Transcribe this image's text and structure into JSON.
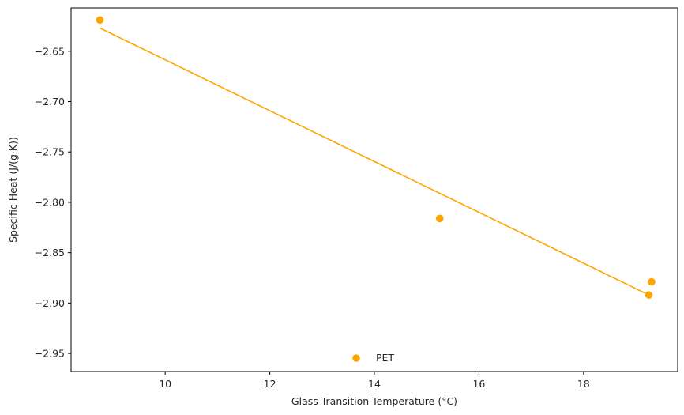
{
  "chart_data": {
    "type": "scatter",
    "title": "",
    "xlabel": "Glass Transition Temperature (°C)",
    "ylabel": "Specific Heat (J/(g·K))",
    "xlim": [
      8.2,
      19.8
    ],
    "ylim": [
      -2.968,
      -2.607
    ],
    "x_ticks": [
      10,
      12,
      14,
      16,
      18
    ],
    "x_tick_labels": [
      "10",
      "12",
      "14",
      "16",
      "18"
    ],
    "y_ticks": [
      -2.65,
      -2.7,
      -2.75,
      -2.8,
      -2.85,
      -2.9,
      -2.95
    ],
    "y_tick_labels": [
      "−2.65",
      "−2.70",
      "−2.75",
      "−2.80",
      "−2.85",
      "−2.90",
      "−2.95"
    ],
    "grid": false,
    "legend_position": "lower center",
    "series": [
      {
        "name": "PET",
        "color": "#FFA500",
        "points": [
          {
            "x": 8.75,
            "y": -2.619
          },
          {
            "x": 15.25,
            "y": -2.816
          },
          {
            "x": 19.25,
            "y": -2.892
          },
          {
            "x": 19.3,
            "y": -2.879
          }
        ],
        "trend_line": [
          {
            "x": 8.75,
            "y": -2.627
          },
          {
            "x": 19.25,
            "y": -2.892
          }
        ]
      }
    ]
  }
}
